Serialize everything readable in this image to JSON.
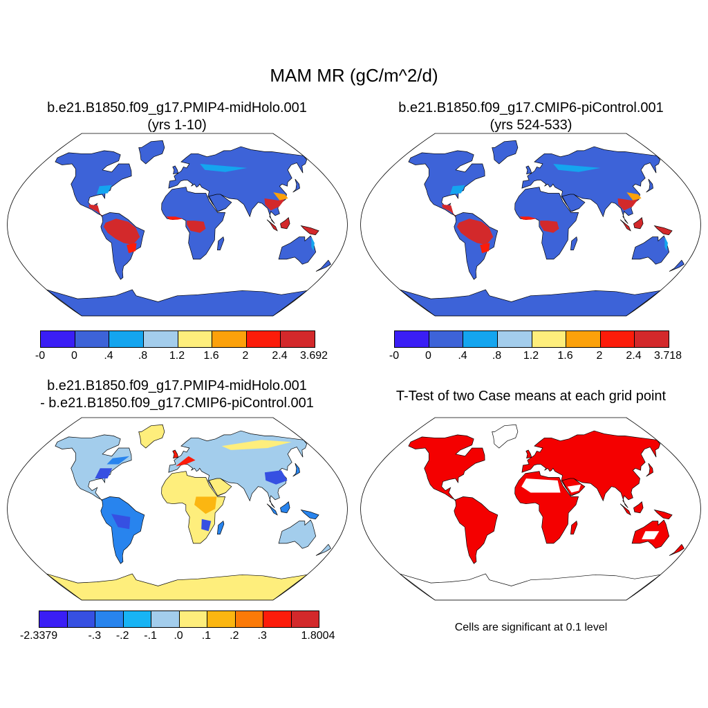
{
  "figure_title": "MAM MR (gC/m^2/d)",
  "panels": [
    {
      "title_line1": "b.e21.B1850.f09_g17.PMIP4-midHolo.001",
      "title_line2": "(yrs 1-10)",
      "colorbar": {
        "colors": [
          "#3a1ef5",
          "#3d63d8",
          "#14a5ef",
          "#a3cdec",
          "#feee7c",
          "#fca10b",
          "#fc1c0a",
          "#d3292b"
        ],
        "labels": [
          "-0",
          "0",
          ".4",
          ".8",
          "1.2",
          "1.6",
          "2",
          "2.4",
          "3.692"
        ]
      }
    },
    {
      "title_line1": "b.e21.B1850.f09_g17.CMIP6-piControl.001",
      "title_line2": "(yrs 524-533)",
      "colorbar": {
        "colors": [
          "#3a1ef5",
          "#3d63d8",
          "#14a5ef",
          "#a3cdec",
          "#feee7c",
          "#fca10b",
          "#fc1c0a",
          "#d3292b"
        ],
        "labels": [
          "-0",
          "0",
          ".4",
          ".8",
          "1.2",
          "1.6",
          "2",
          "2.4",
          "3.718"
        ]
      }
    },
    {
      "title_line1": "b.e21.B1850.f09_g17.PMIP4-midHolo.001",
      "title_line2": "- b.e21.B1850.f09_g17.CMIP6-piControl.001",
      "colorbar": {
        "colors": [
          "#3a1ef5",
          "#3650e2",
          "#2884ee",
          "#18b4f4",
          "#a3cdec",
          "#feee7c",
          "#fbb611",
          "#fb7a08",
          "#fc1c0a",
          "#d3292b"
        ],
        "labels": [
          "-2.3379",
          "",
          "-.3",
          "-.2",
          "-.1",
          ".0",
          ".1",
          ".2",
          ".3",
          "",
          "1.8004"
        ]
      }
    },
    {
      "title_line1": "T-Test of two Case means at each grid point",
      "note": "Cells are significant at 0.1 level",
      "significance_color": "#f40000"
    }
  ],
  "colors": {
    "tropical_high": "#d3292b",
    "land_low": "#3d63d8",
    "antarctic_diff": "#feee7c",
    "map_outline": "#000000"
  }
}
